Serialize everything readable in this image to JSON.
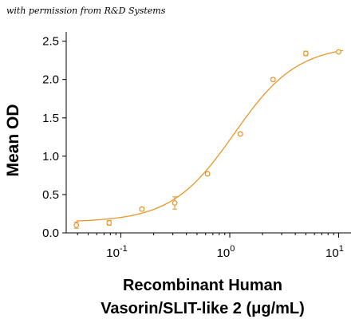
{
  "credit": "with permission from R&D Systems",
  "chart_data": {
    "type": "scatter",
    "title": "",
    "xlabel_line1": "Recombinant Human",
    "xlabel_line2": "Vasorin/SLIT-like 2 (μg/mL)",
    "ylabel": "Mean OD",
    "x_scale": "log",
    "xlim": [
      0.032,
      13
    ],
    "ylim": [
      0,
      2.6
    ],
    "x_ticks": [
      {
        "value": 0.1,
        "base": "10",
        "exp": "-1"
      },
      {
        "value": 1,
        "base": "10",
        "exp": "0"
      },
      {
        "value": 10,
        "base": "10",
        "exp": "1"
      }
    ],
    "y_ticks": [
      {
        "value": 0,
        "label": "0.0"
      },
      {
        "value": 0.5,
        "label": "0.5"
      },
      {
        "value": 1.0,
        "label": "1.0"
      },
      {
        "value": 1.5,
        "label": "1.5"
      },
      {
        "value": 2.0,
        "label": "2.0"
      },
      {
        "value": 2.5,
        "label": "2.5"
      }
    ],
    "grid": false,
    "color": "#E8962A",
    "points": [
      {
        "x": 0.039,
        "y": 0.1,
        "err": 0.04
      },
      {
        "x": 0.078,
        "y": 0.13,
        "err": 0.03
      },
      {
        "x": 0.156,
        "y": 0.31,
        "err": 0.02
      },
      {
        "x": 0.3125,
        "y": 0.39,
        "err": 0.08
      },
      {
        "x": 0.625,
        "y": 0.77,
        "err": 0.02
      },
      {
        "x": 1.25,
        "y": 1.29,
        "err": 0.02
      },
      {
        "x": 2.5,
        "y": 2.0,
        "err": 0.02
      },
      {
        "x": 5.0,
        "y": 2.34,
        "err": 0.03
      },
      {
        "x": 10.0,
        "y": 2.36,
        "err": 0.0
      }
    ],
    "fit": {
      "model": "4PL",
      "bottom": 0.14,
      "top": 2.45,
      "ec50": 1.1,
      "hill": 1.5
    }
  }
}
